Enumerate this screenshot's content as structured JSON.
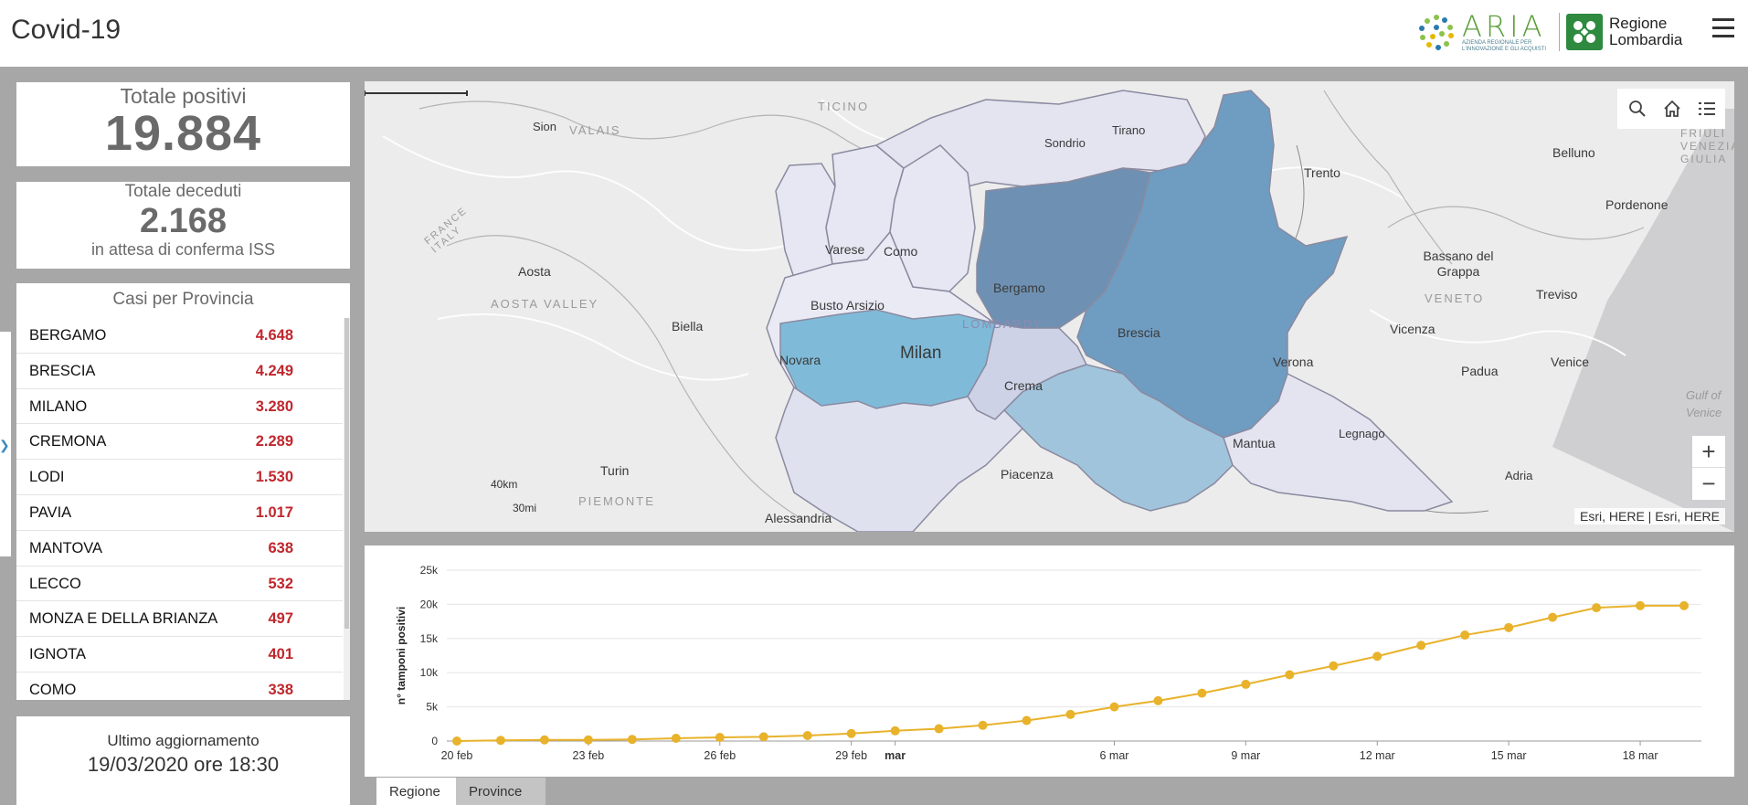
{
  "app": {
    "title": "Covid-19"
  },
  "header": {
    "aria_logo": {
      "word": "ARIA",
      "subtitle": "AZIENDA REGIONALE PER L'INNOVAZIONE E GLI ACQUISTI"
    },
    "regione_logo": {
      "line1": "Regione",
      "line2": "Lombardia"
    },
    "menu_icon": "hamburger-icon"
  },
  "totale_positivi": {
    "label": "Totale positivi",
    "value": "19.884"
  },
  "totale_deceduti": {
    "label": "Totale deceduti",
    "value": "2.168",
    "note": "in attesa di conferma ISS"
  },
  "casi_per_provincia": {
    "title": "Casi per Provincia",
    "rows": [
      {
        "name": "BERGAMO",
        "value": "4.648"
      },
      {
        "name": "BRESCIA",
        "value": "4.249"
      },
      {
        "name": "MILANO",
        "value": "3.280"
      },
      {
        "name": "CREMONA",
        "value": "2.289"
      },
      {
        "name": "LODI",
        "value": "1.530"
      },
      {
        "name": "PAVIA",
        "value": "1.017"
      },
      {
        "name": "MANTOVA",
        "value": "638"
      },
      {
        "name": "LECCO",
        "value": "532"
      },
      {
        "name": "MONZA E DELLA BRIANZA",
        "value": "497"
      },
      {
        "name": "IGNOTA",
        "value": "401"
      },
      {
        "name": "COMO",
        "value": "338"
      }
    ]
  },
  "ultimo_aggiornamento": {
    "label": "Ultimo aggiornamento",
    "value": "19/03/2020 ore 18:30"
  },
  "map": {
    "labels": {
      "sion": "Sion",
      "valais": "VALAIS",
      "ticino": "TICINO",
      "sondrio": "Sondrio",
      "tirano": "Tirano",
      "trento": "Trento",
      "belluno": "Belluno",
      "friuli": "FRIULI VENEZIA GIULIA",
      "pordenone": "Pordenone",
      "france_italy": "FRANCE ITALY",
      "aosta": "Aosta",
      "aosta_valley": "AOSTA VALLEY",
      "varese": "Varese",
      "como": "Como",
      "bergamo": "Bergamo",
      "busto": "Busto Arsizio",
      "lombardy": "LOMBARDY",
      "bassano": "Bassano del Grappa",
      "veneto": "VENETO",
      "treviso": "Treviso",
      "biella": "Biella",
      "novara": "Novara",
      "milan": "Milan",
      "brescia": "Brescia",
      "vicenza": "Vicenza",
      "verona": "Verona",
      "padua": "Padua",
      "venice": "Venice",
      "gulf": "Gulf of Venice",
      "crema": "Crema",
      "legnago": "Legnago",
      "mantua": "Mantua",
      "turin": "Turin",
      "piacenza": "Piacenza",
      "adria": "Adria",
      "piemonte": "PIEMONTE",
      "alessandria": "Alessandria"
    },
    "scale": {
      "km": "40km",
      "mi": "30mi"
    },
    "attribution": "Esri, HERE | Esri, HERE",
    "tools": [
      "search-icon",
      "home-icon",
      "list-icon"
    ],
    "zoom_in": "+",
    "zoom_out": "−"
  },
  "chart_data": {
    "type": "line",
    "ylabel": "n° tamponi positivi",
    "xlabel": "",
    "ylim": [
      0,
      25000
    ],
    "yticks": [
      "0",
      "5k",
      "10k",
      "15k",
      "20k",
      "25k"
    ],
    "xticks": [
      "20 feb",
      "23 feb",
      "26 feb",
      "29 feb",
      "mar",
      "6 mar",
      "9 mar",
      "12 mar",
      "15 mar",
      "18 mar"
    ],
    "x": [
      "20 feb",
      "21 feb",
      "22 feb",
      "23 feb",
      "24 feb",
      "25 feb",
      "26 feb",
      "27 feb",
      "28 feb",
      "29 feb",
      "1 mar",
      "2 mar",
      "3 mar",
      "4 mar",
      "5 mar",
      "6 mar",
      "7 mar",
      "8 mar",
      "9 mar",
      "10 mar",
      "11 mar",
      "12 mar",
      "13 mar",
      "14 mar",
      "15 mar",
      "16 mar",
      "17 mar",
      "18 mar",
      "19 mar"
    ],
    "series": [
      {
        "name": "",
        "color": "#e8b22b",
        "values": [
          0,
          100,
          170,
          170,
          240,
          400,
          530,
          620,
          800,
          1100,
          1500,
          1800,
          2300,
          3000,
          3900,
          5000,
          5900,
          7000,
          8300,
          9700,
          11000,
          12400,
          14000,
          15500,
          16600,
          18100,
          19500,
          19800,
          19800
        ]
      }
    ]
  },
  "tabs": [
    {
      "label": "Regione"
    },
    {
      "label": "Province"
    }
  ]
}
